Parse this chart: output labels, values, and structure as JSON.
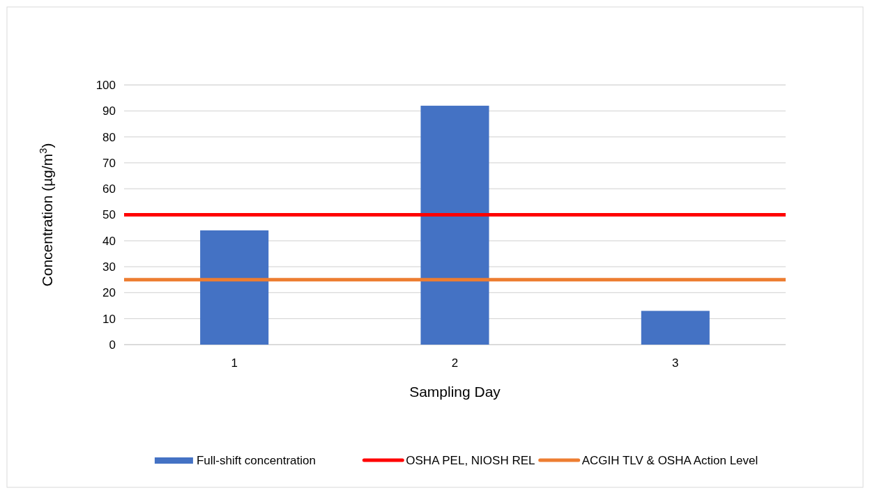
{
  "chart_data": {
    "type": "bar",
    "xlabel": "Sampling Day",
    "ylabel": "Concentration (µg/m$^{3}$)",
    "categories": [
      "1",
      "2",
      "3"
    ],
    "series": [
      {
        "name": "Full-shift concentration",
        "color": "#4472c4",
        "values": [
          44,
          92,
          13
        ]
      }
    ],
    "ylim": [
      0,
      100
    ],
    "yticks": [
      0,
      10,
      20,
      30,
      40,
      50,
      60,
      70,
      80,
      90,
      100
    ],
    "grid": "y",
    "legend": "bottom",
    "ref_lines": [
      {
        "axis": "y",
        "value": 50,
        "label": "OSHA PEL, NIOSH REL",
        "color": "#ff0000"
      },
      {
        "axis": "y",
        "value": 25,
        "label": "ACGIH TLV & OSHA Action Level",
        "color": "#ed7d31"
      }
    ]
  }
}
